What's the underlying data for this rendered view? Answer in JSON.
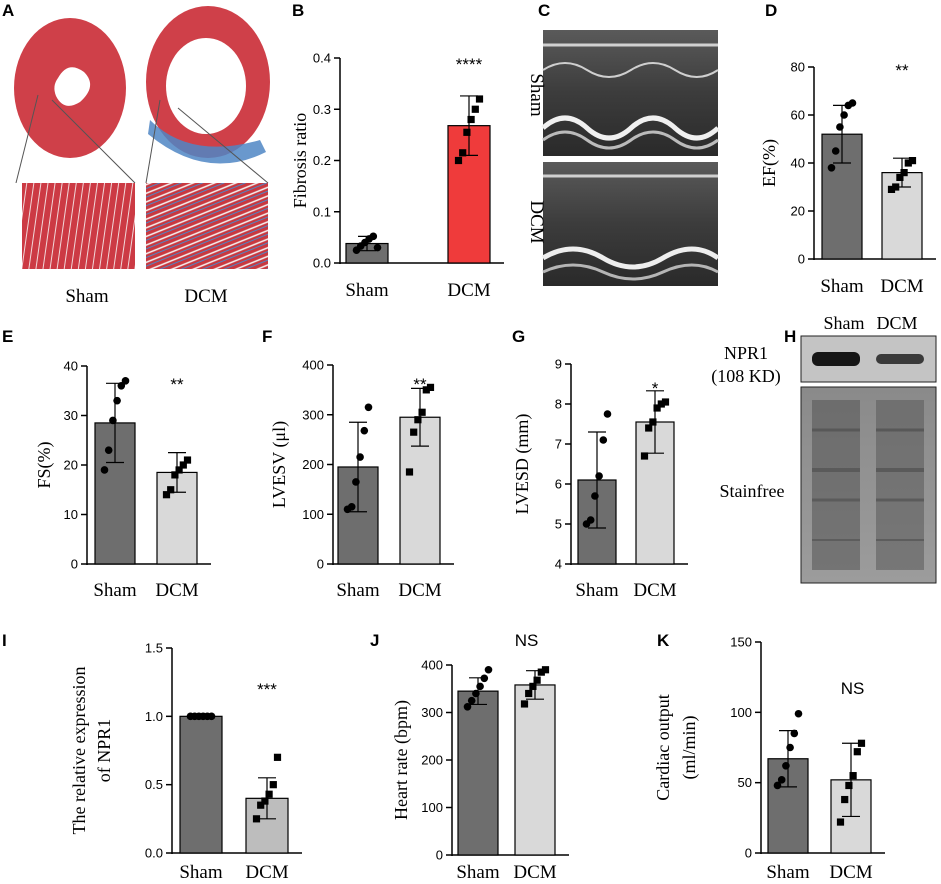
{
  "panels": {
    "A": {
      "label": "A",
      "categories": [
        "Sham",
        "DCM"
      ]
    },
    "C": {
      "label": "C",
      "rows": [
        "Sham",
        "DCM"
      ]
    },
    "H": {
      "label": "H",
      "columns": [
        "Sham",
        "DCM"
      ],
      "band_label": "NPR1",
      "band_size": "(108 KD)",
      "loading_label": "Stainfree"
    }
  },
  "colors": {
    "sham_dark": "#6e6e6e",
    "dcm_red": "#ef3b3b",
    "dcm_light": "#d9d9d9",
    "dcm_mid": "#bdbdbd",
    "trichrome_red": "#c9383f",
    "fibrosis_blue": "#3f7fbf"
  },
  "chart_data": [
    {
      "panel": "B",
      "type": "bar",
      "categories": [
        "Sham",
        "DCM"
      ],
      "values": [
        0.038,
        0.268
      ],
      "error": [
        0.014,
        0.058
      ],
      "points": [
        [
          0.025,
          0.033,
          0.04,
          0.047,
          0.052,
          0.03
        ],
        [
          0.2,
          0.215,
          0.255,
          0.28,
          0.3,
          0.32
        ]
      ],
      "ylabel": "Fibrosis ratio",
      "ylim": [
        0,
        0.4
      ],
      "yticks": [
        "0.0",
        "0.1",
        "0.2",
        "0.3",
        "0.4"
      ],
      "annotation": "****"
    },
    {
      "panel": "D",
      "type": "bar",
      "categories": [
        "Sham",
        "DCM"
      ],
      "values": [
        52,
        36
      ],
      "error": [
        12,
        6
      ],
      "points": [
        [
          38,
          45,
          55,
          60,
          64,
          65
        ],
        [
          29,
          30,
          34,
          36,
          40,
          41
        ]
      ],
      "ylabel": "EF(%)",
      "ylim": [
        0,
        80
      ],
      "yticks": [
        "0",
        "20",
        "40",
        "60",
        "80"
      ],
      "annotation": "**"
    },
    {
      "panel": "E",
      "type": "bar",
      "categories": [
        "Sham",
        "DCM"
      ],
      "values": [
        28.5,
        18.5
      ],
      "error": [
        8,
        4
      ],
      "points": [
        [
          19,
          23,
          29,
          33,
          36,
          37
        ],
        [
          14,
          15,
          18,
          19,
          20,
          21
        ]
      ],
      "ylabel": "FS(%)",
      "ylim": [
        0,
        40
      ],
      "yticks": [
        "0",
        "10",
        "20",
        "30",
        "40"
      ],
      "annotation": "**"
    },
    {
      "panel": "F",
      "type": "bar",
      "categories": [
        "Sham",
        "DCM"
      ],
      "values": [
        195,
        295
      ],
      "error": [
        90,
        58
      ],
      "points": [
        [
          110,
          115,
          165,
          215,
          268,
          315
        ],
        [
          185,
          265,
          290,
          305,
          350,
          355
        ]
      ],
      "ylabel": "LVESV (μl)",
      "ylim": [
        0,
        400
      ],
      "yticks": [
        "0",
        "100",
        "200",
        "300",
        "400"
      ],
      "annotation": "**"
    },
    {
      "panel": "G",
      "type": "bar",
      "categories": [
        "Sham",
        "DCM"
      ],
      "values": [
        6.1,
        7.55
      ],
      "error": [
        1.2,
        0.78
      ],
      "points": [
        [
          5.0,
          5.1,
          5.7,
          6.2,
          7.1,
          7.75
        ],
        [
          6.7,
          7.4,
          7.55,
          7.9,
          8.0,
          8.05
        ]
      ],
      "ylabel": "LVESD (mm)",
      "ylim": [
        4,
        9
      ],
      "yticks": [
        "4",
        "5",
        "6",
        "7",
        "8",
        "9"
      ],
      "annotation": "*"
    },
    {
      "panel": "I",
      "type": "bar",
      "categories": [
        "Sham",
        "DCM"
      ],
      "values": [
        1.0,
        0.4
      ],
      "error": [
        0.0,
        0.15
      ],
      "points": [
        [
          1.0,
          1.0,
          1.0,
          1.0,
          1.0,
          1.0
        ],
        [
          0.25,
          0.35,
          0.38,
          0.43,
          0.5,
          0.7
        ]
      ],
      "ylabel": "The relative expression of NPR1",
      "ylabel_lines": [
        "The relative expression",
        "of NPR1"
      ],
      "ylim": [
        0,
        1.5
      ],
      "yticks": [
        "0.0",
        "0.5",
        "1.0",
        "1.5"
      ],
      "annotation": "***"
    },
    {
      "panel": "J",
      "type": "bar",
      "categories": [
        "Sham",
        "DCM"
      ],
      "values": [
        345,
        358
      ],
      "error": [
        28,
        30
      ],
      "points": [
        [
          312,
          325,
          340,
          355,
          372,
          390
        ],
        [
          318,
          340,
          355,
          368,
          385,
          390
        ]
      ],
      "ylabel": "Heart rate (bpm)",
      "ylim": [
        0,
        400
      ],
      "yticks": [
        "0",
        "100",
        "200",
        "300",
        "400"
      ],
      "annotation": "NS"
    },
    {
      "panel": "K",
      "type": "bar",
      "categories": [
        "Sham",
        "DCM"
      ],
      "values": [
        67,
        52
      ],
      "error": [
        20,
        26
      ],
      "points": [
        [
          48,
          52,
          62,
          75,
          85,
          99
        ],
        [
          22,
          38,
          48,
          55,
          72,
          78
        ]
      ],
      "ylabel": "Cardiac output (ml/min)",
      "ylabel_lines": [
        "Cardiac output",
        "(ml/min)"
      ],
      "ylim": [
        0,
        150
      ],
      "yticks": [
        "0",
        "50",
        "100",
        "150"
      ],
      "annotation": "NS"
    }
  ]
}
